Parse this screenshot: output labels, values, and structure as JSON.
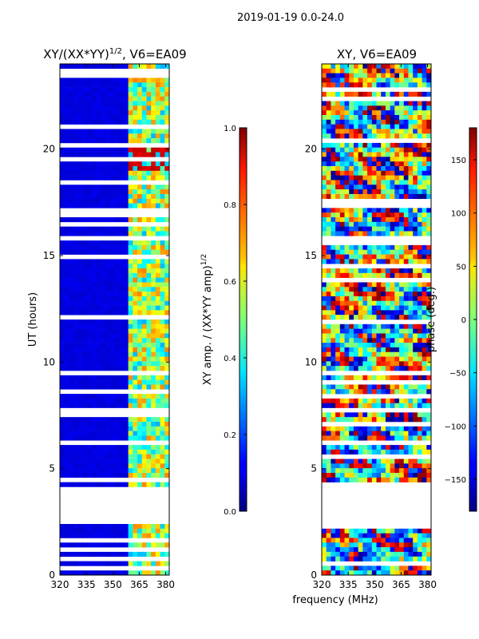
{
  "chart_data": {
    "suptitle": "2019-01-19 0.0-24.0",
    "xlabel_shared": "frequency (MHz)",
    "panels": [
      {
        "type": "heatmap",
        "title_main": "XY/(XX*YY)",
        "title_sup": "1/2",
        "title_rest": ", V6=EA09",
        "ylabel": "UT (hours)",
        "xlim": [
          320,
          382
        ],
        "ylim": [
          0,
          24
        ],
        "xticks": [
          320,
          335,
          350,
          365,
          380
        ],
        "yticks": [
          0,
          5,
          10,
          15,
          20
        ],
        "band_freq_start": 360,
        "data_gaps_hours": [
          [
            2.35,
            4.1
          ]
        ],
        "colorbar": {
          "label_main": "XY amp. / (XX*YY amp)",
          "label_sup": "1/2",
          "range": [
            0.0,
            1.0
          ],
          "ticks": [
            "0.0",
            "0.2",
            "0.4",
            "0.6",
            "0.8",
            "1.0"
          ],
          "colormap": "jet"
        }
      },
      {
        "type": "heatmap",
        "title_main": "XY, V6=EA09",
        "ylabel": "",
        "xlim": [
          320,
          382
        ],
        "ylim": [
          0,
          24
        ],
        "xticks": [
          320,
          335,
          350,
          365,
          380
        ],
        "yticks": [
          0,
          5,
          10,
          15,
          20
        ],
        "data_gaps_hours": [
          [
            2.35,
            4.1
          ]
        ],
        "colorbar": {
          "label_main": "phase (deg.)",
          "range": [
            -180,
            180
          ],
          "ticks": [
            "150",
            "100",
            "50",
            "0",
            "−50",
            "−100",
            "−150"
          ],
          "colormap": "jet"
        }
      }
    ]
  }
}
